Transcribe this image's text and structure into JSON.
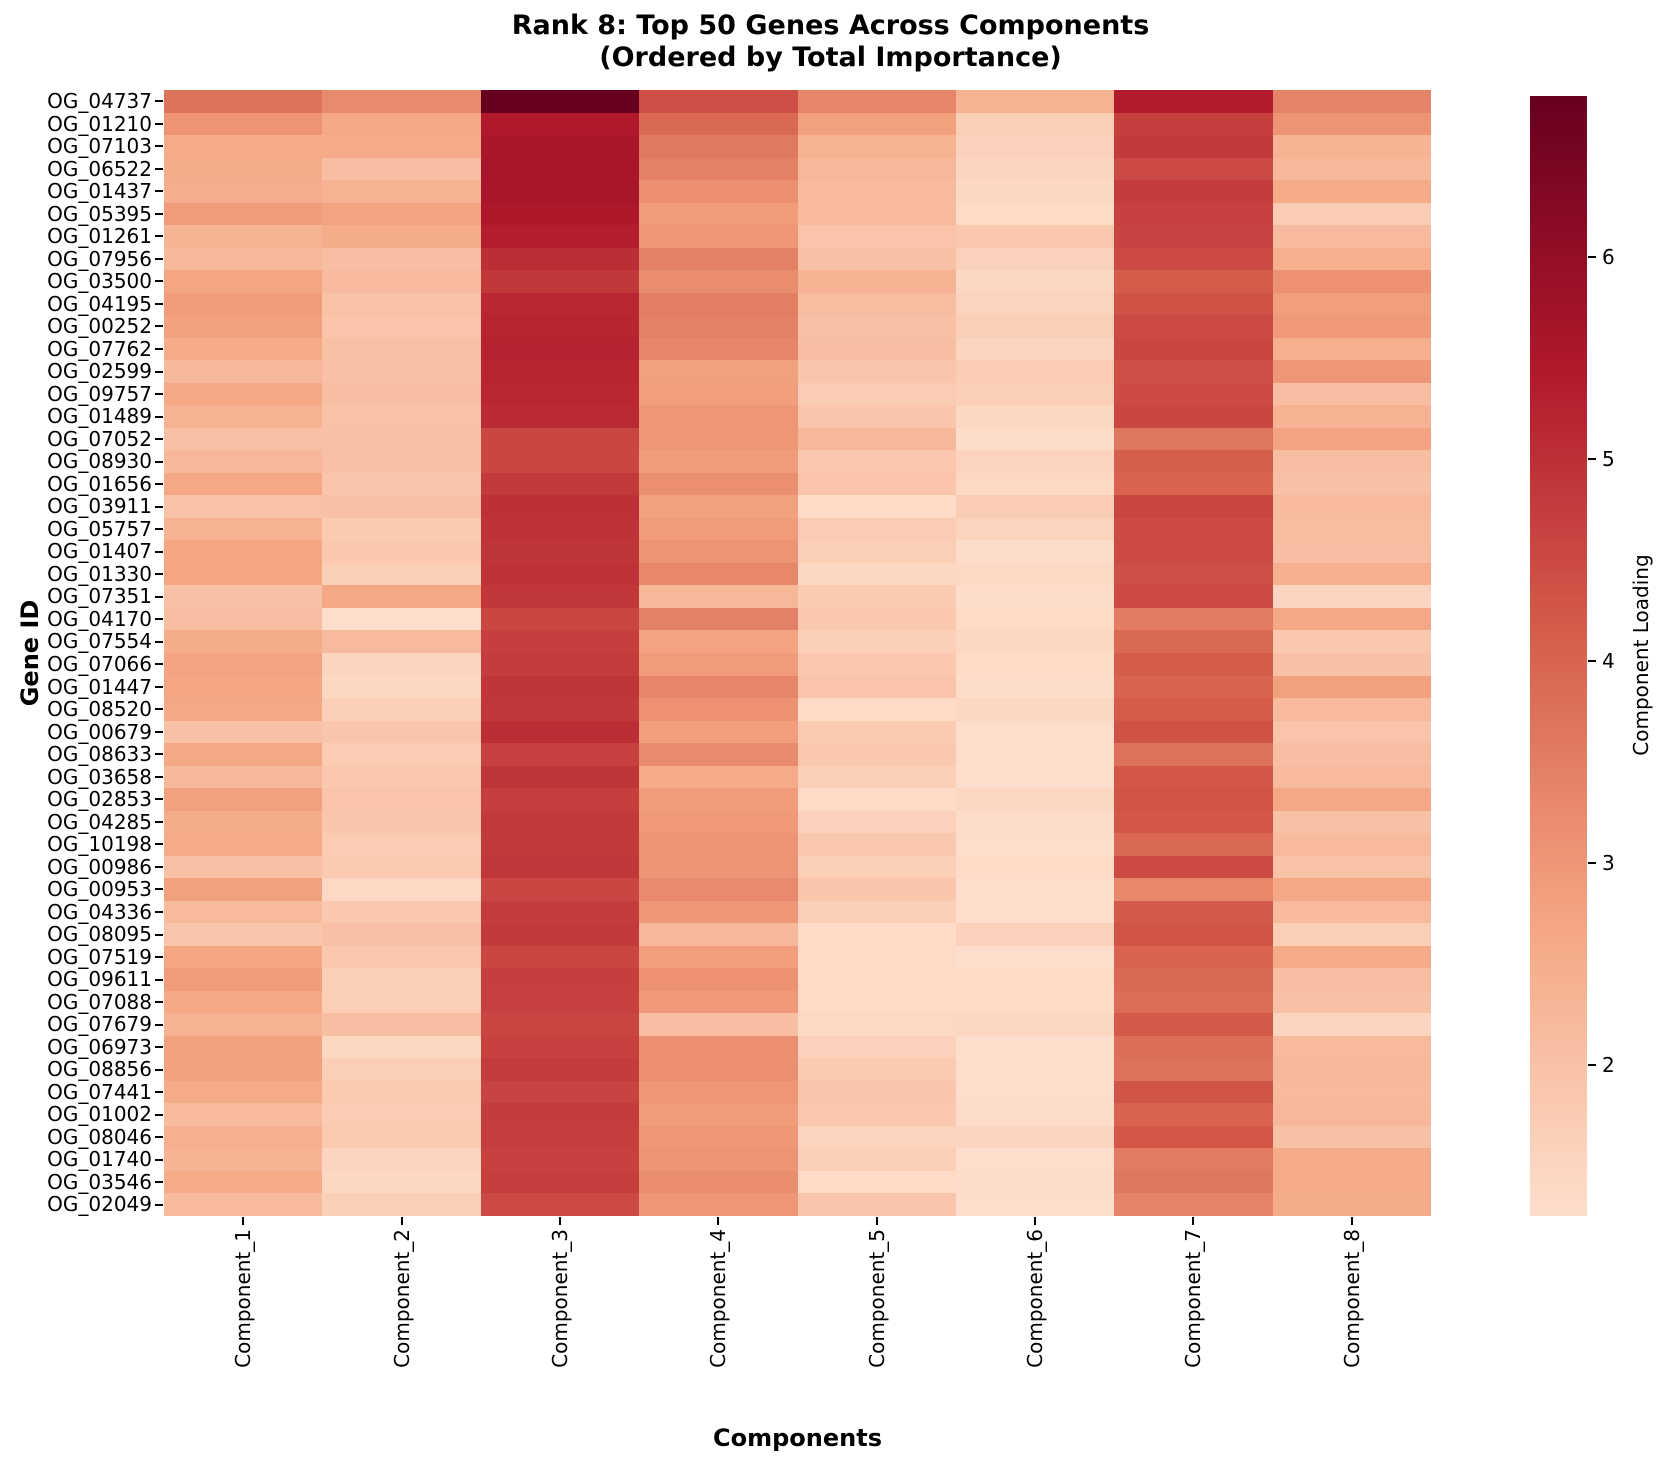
{
  "chart_data": {
    "type": "heatmap",
    "title": "Rank 8: Top 50 Genes Across Components",
    "subtitle": "(Ordered by Total Importance)",
    "xlabel": "Components",
    "ylabel": "Gene ID",
    "colorbar_label": "Component Loading",
    "legend_position": "right",
    "grid": false,
    "x_categories": [
      "Component_1",
      "Component_2",
      "Component_3",
      "Component_4",
      "Component_5",
      "Component_6",
      "Component_7",
      "Component_8"
    ],
    "y_categories": [
      "OG_04737",
      "OG_01210",
      "OG_07103",
      "OG_06522",
      "OG_01437",
      "OG_05395",
      "OG_01261",
      "OG_07956",
      "OG_03500",
      "OG_04195",
      "OG_00252",
      "OG_07762",
      "OG_02599",
      "OG_09757",
      "OG_01489",
      "OG_07052",
      "OG_08930",
      "OG_01656",
      "OG_03911",
      "OG_05757",
      "OG_01407",
      "OG_01330",
      "OG_07351",
      "OG_04170",
      "OG_07554",
      "OG_07066",
      "OG_01447",
      "OG_08520",
      "OG_00679",
      "OG_08633",
      "OG_03658",
      "OG_02853",
      "OG_04285",
      "OG_10198",
      "OG_00986",
      "OG_00953",
      "OG_04336",
      "OG_08095",
      "OG_07519",
      "OG_09611",
      "OG_07088",
      "OG_07679",
      "OG_06973",
      "OG_08856",
      "OG_07441",
      "OG_01002",
      "OG_08046",
      "OG_01740",
      "OG_03546",
      "OG_02049"
    ],
    "values": [
      [
        3.7,
        3.25,
        6.8,
        4.4,
        3.35,
        2.4,
        5.4,
        3.4
      ],
      [
        3.05,
        2.65,
        5.45,
        3.9,
        2.8,
        1.7,
        4.7,
        3.05
      ],
      [
        2.6,
        2.6,
        5.55,
        3.6,
        2.4,
        1.6,
        4.8,
        2.35
      ],
      [
        2.55,
        2.1,
        5.6,
        3.45,
        2.25,
        1.5,
        4.5,
        2.25
      ],
      [
        2.5,
        2.4,
        5.6,
        3.15,
        2.2,
        1.45,
        4.75,
        2.6
      ],
      [
        2.9,
        2.75,
        5.5,
        2.9,
        2.2,
        1.35,
        4.65,
        1.75
      ],
      [
        2.35,
        2.55,
        5.35,
        3.0,
        1.95,
        1.85,
        4.6,
        2.2
      ],
      [
        2.25,
        2.1,
        5.05,
        3.45,
        2.05,
        1.6,
        4.5,
        2.45
      ],
      [
        2.7,
        2.2,
        4.85,
        3.2,
        2.4,
        1.45,
        4.15,
        3.1
      ],
      [
        2.9,
        2.0,
        5.15,
        3.5,
        2.15,
        1.55,
        4.35,
        2.85
      ],
      [
        2.8,
        1.95,
        5.2,
        3.45,
        2.05,
        1.7,
        4.5,
        2.95
      ],
      [
        2.6,
        2.05,
        5.25,
        3.35,
        2.1,
        1.5,
        4.55,
        2.45
      ],
      [
        2.25,
        2.05,
        5.2,
        2.8,
        1.9,
        1.75,
        4.4,
        3.0
      ],
      [
        2.65,
        2.1,
        5.15,
        2.85,
        1.75,
        1.65,
        4.45,
        2.1
      ],
      [
        2.4,
        2.0,
        5.1,
        3.0,
        1.9,
        1.45,
        4.55,
        2.4
      ],
      [
        2.05,
        2.05,
        4.55,
        3.0,
        2.25,
        1.3,
        3.65,
        2.75
      ],
      [
        2.25,
        2.05,
        4.55,
        2.9,
        1.85,
        1.55,
        4.1,
        2.1
      ],
      [
        2.65,
        1.9,
        4.8,
        3.15,
        1.95,
        1.4,
        4.0,
        2.05
      ],
      [
        2.0,
        2.05,
        5.0,
        2.8,
        1.35,
        1.75,
        4.55,
        2.2
      ],
      [
        2.4,
        1.8,
        4.95,
        2.9,
        1.75,
        1.55,
        4.45,
        2.15
      ],
      [
        2.7,
        1.85,
        4.9,
        3.05,
        1.7,
        1.3,
        4.5,
        2.1
      ],
      [
        2.7,
        1.7,
        4.95,
        3.3,
        1.45,
        1.4,
        4.4,
        2.45
      ],
      [
        2.05,
        2.65,
        4.85,
        2.25,
        1.8,
        1.3,
        4.5,
        1.5
      ],
      [
        2.1,
        1.25,
        4.55,
        3.45,
        1.85,
        1.35,
        3.55,
        2.65
      ],
      [
        2.55,
        2.2,
        4.7,
        2.75,
        1.65,
        1.45,
        3.9,
        1.85
      ],
      [
        2.75,
        1.5,
        4.75,
        2.9,
        1.85,
        1.35,
        4.15,
        2.05
      ],
      [
        2.7,
        1.45,
        4.9,
        3.35,
        1.95,
        1.3,
        4.0,
        2.8
      ],
      [
        2.65,
        1.65,
        4.85,
        3.1,
        1.35,
        1.45,
        4.15,
        2.2
      ],
      [
        2.05,
        1.9,
        5.05,
        2.85,
        1.8,
        1.25,
        4.35,
        1.95
      ],
      [
        2.65,
        1.75,
        4.65,
        3.25,
        1.85,
        1.25,
        3.75,
        2.1
      ],
      [
        2.25,
        1.85,
        4.9,
        2.6,
        1.7,
        1.25,
        4.25,
        2.2
      ],
      [
        2.8,
        1.95,
        4.7,
        2.9,
        1.35,
        1.45,
        4.3,
        2.65
      ],
      [
        2.55,
        1.9,
        4.8,
        2.95,
        1.6,
        1.3,
        4.25,
        2.05
      ],
      [
        2.6,
        1.75,
        4.8,
        3.05,
        1.85,
        1.25,
        3.9,
        2.2
      ],
      [
        2.05,
        1.8,
        4.85,
        3.05,
        1.7,
        1.35,
        4.45,
        2.0
      ],
      [
        2.8,
        1.4,
        4.55,
        3.25,
        1.9,
        1.25,
        3.3,
        2.65
      ],
      [
        2.2,
        1.85,
        4.75,
        3.0,
        1.65,
        1.25,
        4.2,
        2.2
      ],
      [
        1.9,
        2.05,
        4.8,
        2.25,
        1.35,
        1.6,
        4.3,
        1.7
      ],
      [
        2.7,
        1.85,
        4.55,
        2.85,
        1.35,
        1.25,
        4.0,
        2.6
      ],
      [
        2.9,
        1.7,
        4.7,
        3.1,
        1.35,
        1.35,
        3.9,
        2.1
      ],
      [
        2.65,
        1.7,
        4.65,
        2.95,
        1.35,
        1.35,
        3.85,
        2.05
      ],
      [
        2.4,
        2.1,
        4.55,
        2.1,
        1.4,
        1.45,
        4.2,
        1.5
      ],
      [
        2.8,
        1.45,
        4.65,
        3.15,
        1.6,
        1.25,
        3.8,
        2.2
      ],
      [
        2.8,
        1.7,
        4.75,
        3.15,
        1.8,
        1.25,
        3.75,
        2.25
      ],
      [
        2.6,
        1.8,
        4.6,
        3.0,
        1.9,
        1.25,
        4.3,
        2.2
      ],
      [
        2.2,
        1.75,
        4.75,
        2.9,
        1.85,
        1.3,
        4.0,
        2.25
      ],
      [
        2.45,
        1.8,
        4.7,
        3.0,
        1.55,
        1.5,
        4.25,
        2.05
      ],
      [
        2.4,
        1.5,
        4.65,
        3.05,
        1.7,
        1.25,
        3.55,
        2.6
      ],
      [
        2.6,
        1.45,
        4.7,
        3.2,
        1.35,
        1.3,
        3.65,
        2.6
      ],
      [
        2.2,
        1.65,
        4.5,
        3.0,
        1.9,
        1.25,
        3.4,
        2.55
      ]
    ],
    "vmin": 1.25,
    "vmax": 6.8,
    "colorbar_ticks": [
      6,
      5,
      4,
      3,
      2
    ],
    "colormap": {
      "name": "RdBu_r (upper half, centered at 0)",
      "center": 0,
      "extent": 6.8,
      "anchors": [
        {
          "f": 0.5,
          "color": "#f7f7f7"
        },
        {
          "f": 0.6,
          "color": "#fddbc7"
        },
        {
          "f": 0.7,
          "color": "#f4a582"
        },
        {
          "f": 0.8,
          "color": "#d6604d"
        },
        {
          "f": 0.9,
          "color": "#b2182b"
        },
        {
          "f": 1.0,
          "color": "#67001f"
        }
      ]
    }
  }
}
